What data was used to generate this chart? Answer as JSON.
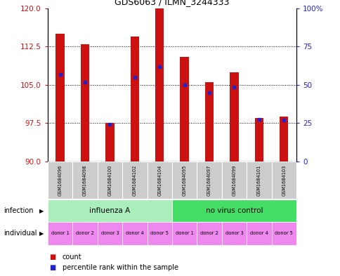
{
  "title": "GDS6063 / ILMN_3244333",
  "samples": [
    "GSM1684096",
    "GSM1684098",
    "GSM1684100",
    "GSM1684102",
    "GSM1684104",
    "GSM1684095",
    "GSM1684097",
    "GSM1684099",
    "GSM1684101",
    "GSM1684103"
  ],
  "bar_heights": [
    115.0,
    113.0,
    97.5,
    114.5,
    120.0,
    110.5,
    105.5,
    107.5,
    98.5,
    98.8
  ],
  "percentile_positions": [
    107.0,
    105.5,
    97.3,
    106.5,
    108.5,
    105.0,
    103.5,
    104.5,
    98.2,
    98.1
  ],
  "ylim_left": [
    90,
    120
  ],
  "yticks_left": [
    90,
    97.5,
    105,
    112.5,
    120
  ],
  "ylim_right": [
    0,
    100
  ],
  "yticks_right": [
    0,
    25,
    50,
    75,
    100
  ],
  "ytick_right_labels": [
    "0",
    "25",
    "50",
    "75",
    "100%"
  ],
  "bar_color": "#cc1111",
  "percentile_color": "#2222cc",
  "bar_width": 0.35,
  "infection_groups": [
    {
      "label": "influenza A",
      "start": 0,
      "end": 5,
      "color": "#aaeebb"
    },
    {
      "label": "no virus control",
      "start": 5,
      "end": 10,
      "color": "#44dd66"
    }
  ],
  "individual_labels": [
    "donor 1",
    "donor 2",
    "donor 3",
    "donor 4",
    "donor 5",
    "donor 1",
    "donor 2",
    "donor 3",
    "donor 4",
    "donor 5"
  ],
  "individual_color": "#ee88ee",
  "legend_count_color": "#cc1111",
  "legend_percentile_color": "#2222cc",
  "grid_color": "black",
  "background_color": "white",
  "tick_color_left": "#cc1111",
  "tick_color_right": "#2222cc",
  "sample_label_color": "#cccccc"
}
